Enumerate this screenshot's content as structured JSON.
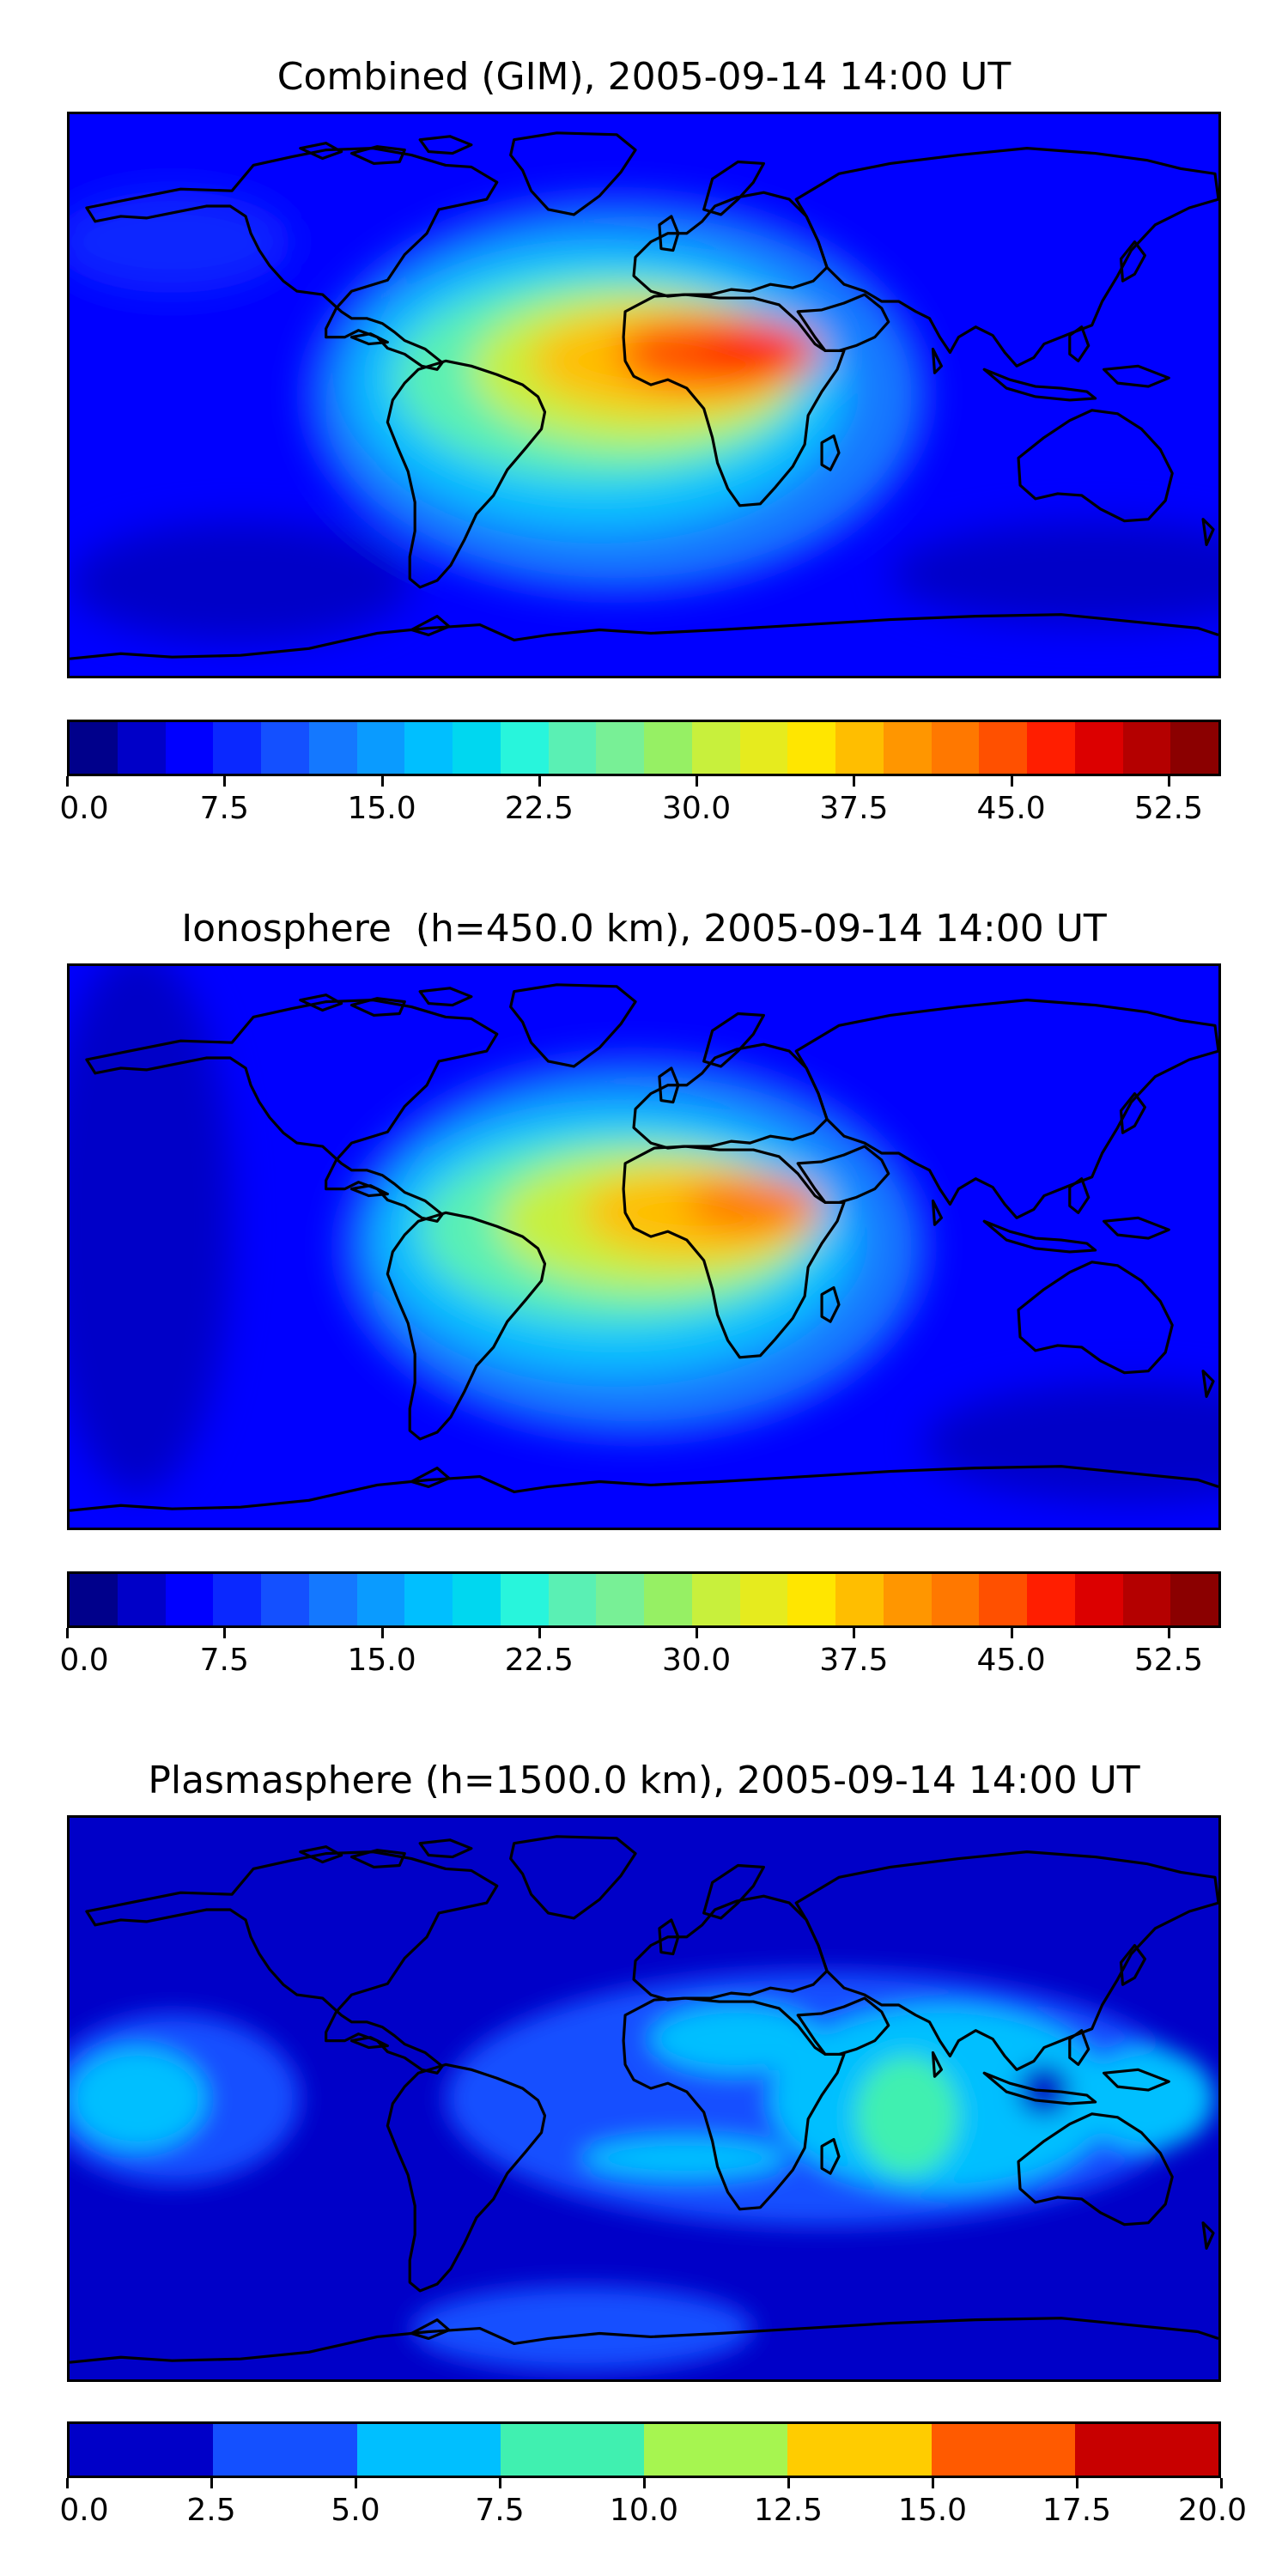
{
  "panels": [
    {
      "title": "Combined (GIM), 2005-09-14 14:00 UT",
      "colorbar": {
        "colors": [
          "#00008b",
          "#0000c8",
          "#0000ff",
          "#0a28ff",
          "#1450ff",
          "#1478ff",
          "#0a9bff",
          "#00bfff",
          "#00d7f0",
          "#28f5dc",
          "#5af0b4",
          "#78f096",
          "#96f064",
          "#c8f03c",
          "#e6eb1e",
          "#ffe600",
          "#ffbe00",
          "#ff9600",
          "#ff7800",
          "#ff5000",
          "#ff1e00",
          "#dc0000",
          "#b40000",
          "#8b0000"
        ],
        "min": 0.0,
        "max": 55.0,
        "tick_labels": [
          "0.0",
          "7.5",
          "15.0",
          "22.5",
          "30.0",
          "37.5",
          "45.0",
          "52.5"
        ]
      }
    },
    {
      "title": "Ionosphere  (h=450.0 km), 2005-09-14 14:00 UT",
      "colorbar": {
        "colors": [
          "#00008b",
          "#0000c8",
          "#0000ff",
          "#0a28ff",
          "#1450ff",
          "#1478ff",
          "#0a9bff",
          "#00bfff",
          "#00d7f0",
          "#28f5dc",
          "#5af0b4",
          "#78f096",
          "#96f064",
          "#c8f03c",
          "#e6eb1e",
          "#ffe600",
          "#ffbe00",
          "#ff9600",
          "#ff7800",
          "#ff5000",
          "#ff1e00",
          "#dc0000",
          "#b40000",
          "#8b0000"
        ],
        "min": 0.0,
        "max": 55.0,
        "tick_labels": [
          "0.0",
          "7.5",
          "15.0",
          "22.5",
          "30.0",
          "37.5",
          "45.0",
          "52.5"
        ]
      }
    },
    {
      "title": "Plasmasphere (h=1500.0 km), 2005-09-14 14:00 UT",
      "colorbar": {
        "colors": [
          "#0000c8",
          "#1450ff",
          "#00bfff",
          "#40f0b0",
          "#a6f550",
          "#ffcc00",
          "#ff5a00",
          "#c80000"
        ],
        "min": 0.0,
        "max": 20.0,
        "tick_labels": [
          "0.0",
          "2.5",
          "5.0",
          "7.5",
          "10.0",
          "12.5",
          "15.0",
          "17.5",
          "20.0"
        ]
      }
    }
  ]
}
